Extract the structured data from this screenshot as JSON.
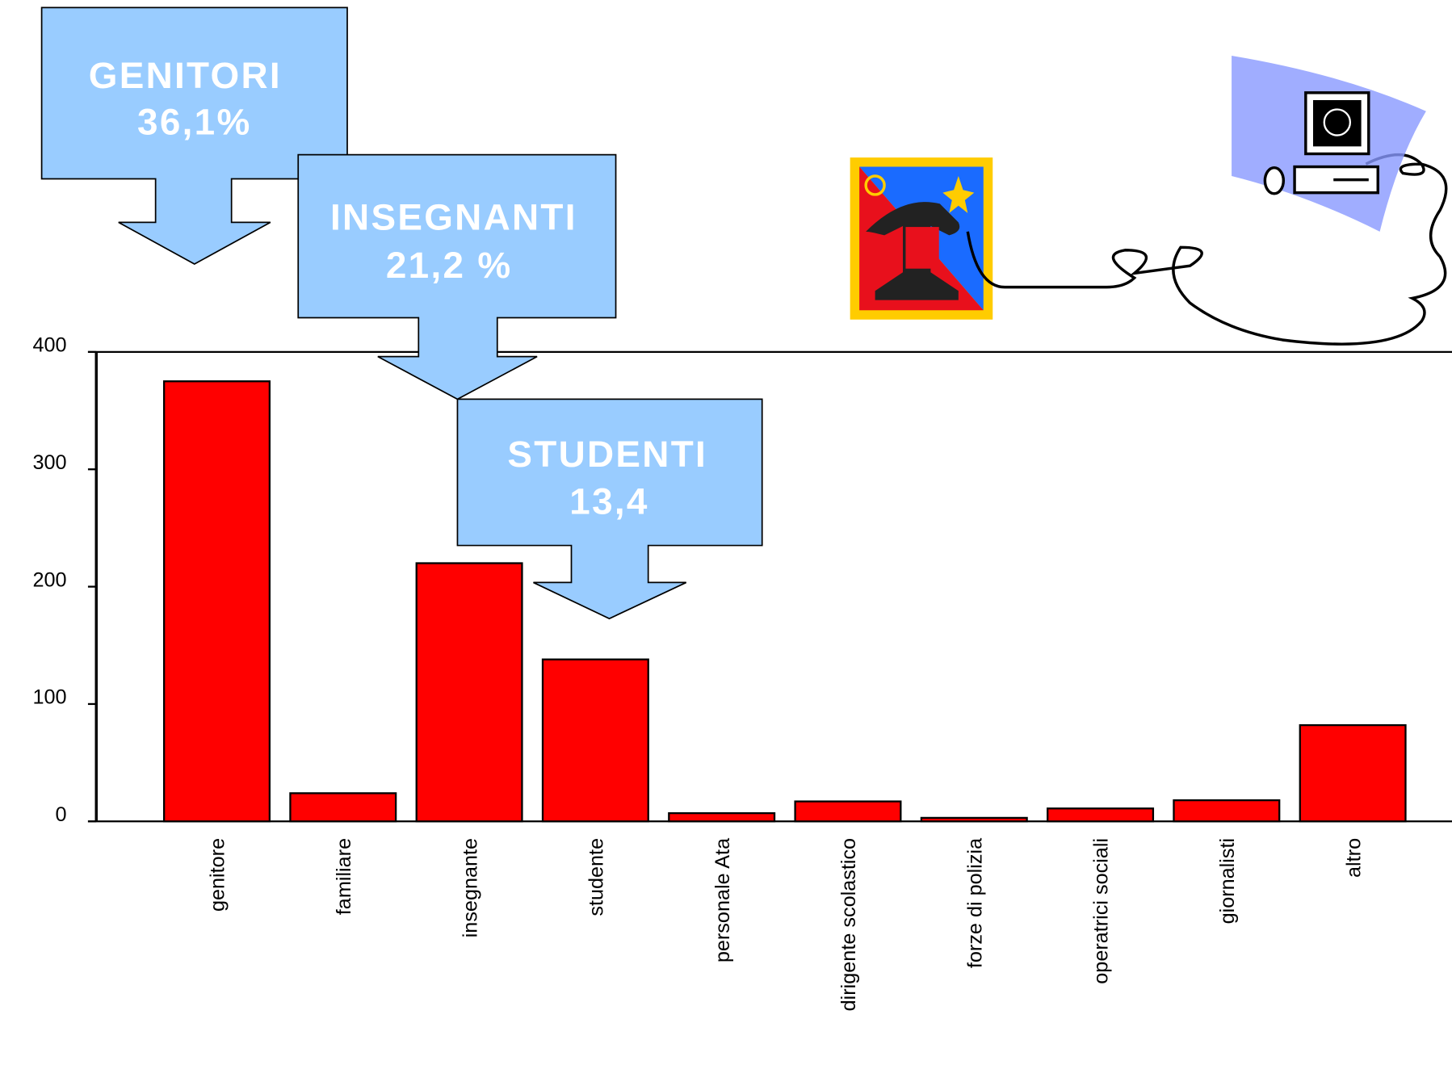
{
  "chart_data": {
    "type": "bar",
    "categories": [
      "genitore",
      "familiare",
      "insegnante",
      "studente",
      "personale Ata",
      "dirigente scolastico",
      "forze di polizia",
      "operatrici sociali",
      "giornalisti",
      "altro"
    ],
    "values": [
      375,
      24,
      220,
      138,
      7,
      17,
      3,
      11,
      18,
      82
    ],
    "color": "#ff0000",
    "ylim": [
      0,
      400
    ],
    "yticks": [
      0,
      100,
      200,
      300,
      400
    ],
    "annotations": [
      {
        "lines": [
          "GENITORI",
          "36,1%"
        ]
      },
      {
        "lines": [
          "INSEGNANTI",
          "21,2 %"
        ]
      },
      {
        "lines": [
          "STUDENTI",
          "13,4"
        ]
      }
    ]
  }
}
